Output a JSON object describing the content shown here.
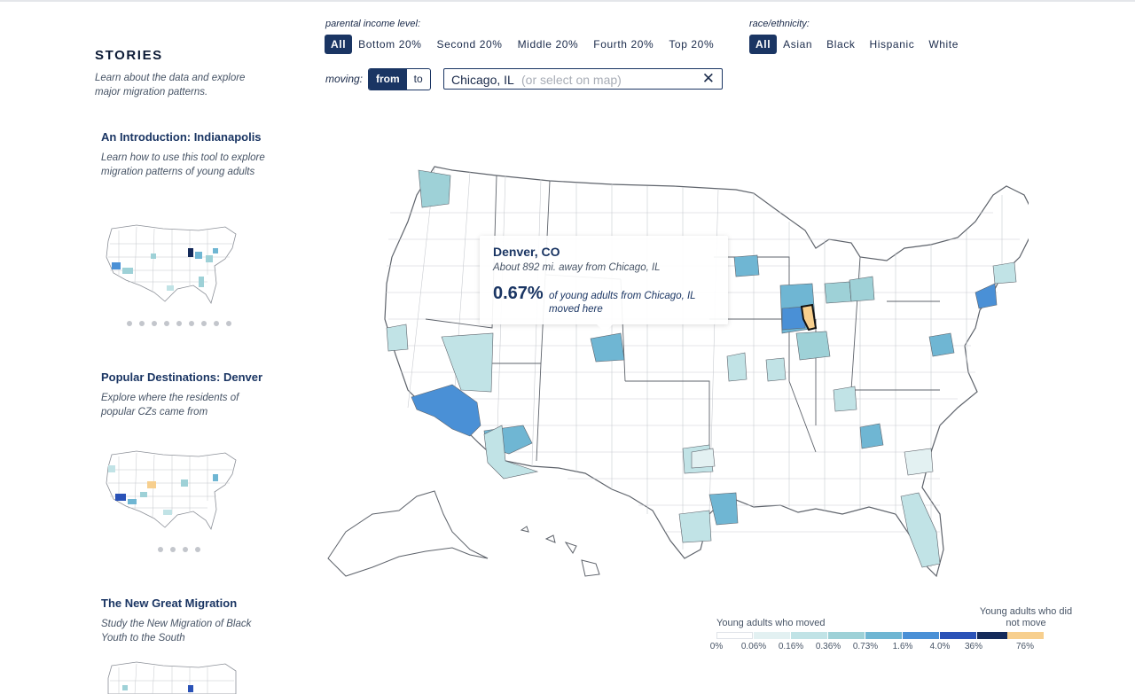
{
  "sidebar": {
    "heading": "STORIES",
    "subtitle": "Learn about the data and explore major migration patterns.",
    "stories": [
      {
        "title": "An Introduction: Indianapolis",
        "description": "Learn how to use this tool to explore migration patterns of young adults",
        "dot_count": 9
      },
      {
        "title": "Popular Destinations: Denver",
        "description": "Explore where the residents of popular CZs came from",
        "dot_count": 4
      },
      {
        "title": "The New Great Migration",
        "description": "Study the New Migration of Black Youth to the South",
        "dot_count": 0
      }
    ]
  },
  "controls": {
    "income_label": "parental income level:",
    "income_options": [
      "All",
      "Bottom 20%",
      "Second 20%",
      "Middle 20%",
      "Fourth 20%",
      "Top 20%"
    ],
    "income_selected": "All",
    "race_label": "race/ethnicity:",
    "race_options": [
      "All",
      "Asian",
      "Black",
      "Hispanic",
      "White"
    ],
    "race_selected": "All",
    "moving_label": "moving:",
    "moving_options": [
      "from",
      "to"
    ],
    "moving_selected": "from",
    "location_value": "Chicago, IL",
    "location_placeholder": "(or select on map)",
    "clear_icon": "close-icon"
  },
  "tooltip": {
    "title": "Denver, CO",
    "distance": "About 892 mi. away from Chicago, IL",
    "percent": "0.67%",
    "description": "of young adults from Chicago, IL moved here"
  },
  "map": {
    "selected_region": "Chicago, IL",
    "selected_color": "#f7cf8e",
    "highlighted_regions": [
      {
        "name": "Los Angeles",
        "bin": 5
      },
      {
        "name": "Phoenix",
        "bin": 4
      },
      {
        "name": "Denver, CO",
        "bin": 4
      },
      {
        "name": "Seattle",
        "bin": 3
      },
      {
        "name": "Las Vegas",
        "bin": 2
      },
      {
        "name": "Houston",
        "bin": 4
      },
      {
        "name": "Dallas",
        "bin": 2
      },
      {
        "name": "Atlanta",
        "bin": 4
      },
      {
        "name": "Minneapolis",
        "bin": 4
      },
      {
        "name": "Milwaukee",
        "bin": 5
      },
      {
        "name": "Madison",
        "bin": 3
      },
      {
        "name": "Detroit",
        "bin": 3
      },
      {
        "name": "New York",
        "bin": 5
      },
      {
        "name": "Washington DC",
        "bin": 4
      },
      {
        "name": "Florida",
        "bin": 2
      },
      {
        "name": "Indianapolis",
        "bin": 3
      }
    ]
  },
  "legend": {
    "moved_title": "Young adults who moved",
    "bins": [
      {
        "color": "#ffffff"
      },
      {
        "color": "#e3f1f2"
      },
      {
        "color": "#c1e3e6"
      },
      {
        "color": "#9ed1d7"
      },
      {
        "color": "#6fb6d3"
      },
      {
        "color": "#4a90d6"
      },
      {
        "color": "#2a52b7"
      },
      {
        "color": "#142a5a"
      }
    ],
    "ticks": [
      "0%",
      "0.06%",
      "0.16%",
      "0.36%",
      "0.73%",
      "1.6%",
      "4.0%",
      "36%"
    ],
    "no_move_title": "Young adults who did not move",
    "no_move_value": "76%",
    "no_move_color": "#f7cf8e"
  }
}
